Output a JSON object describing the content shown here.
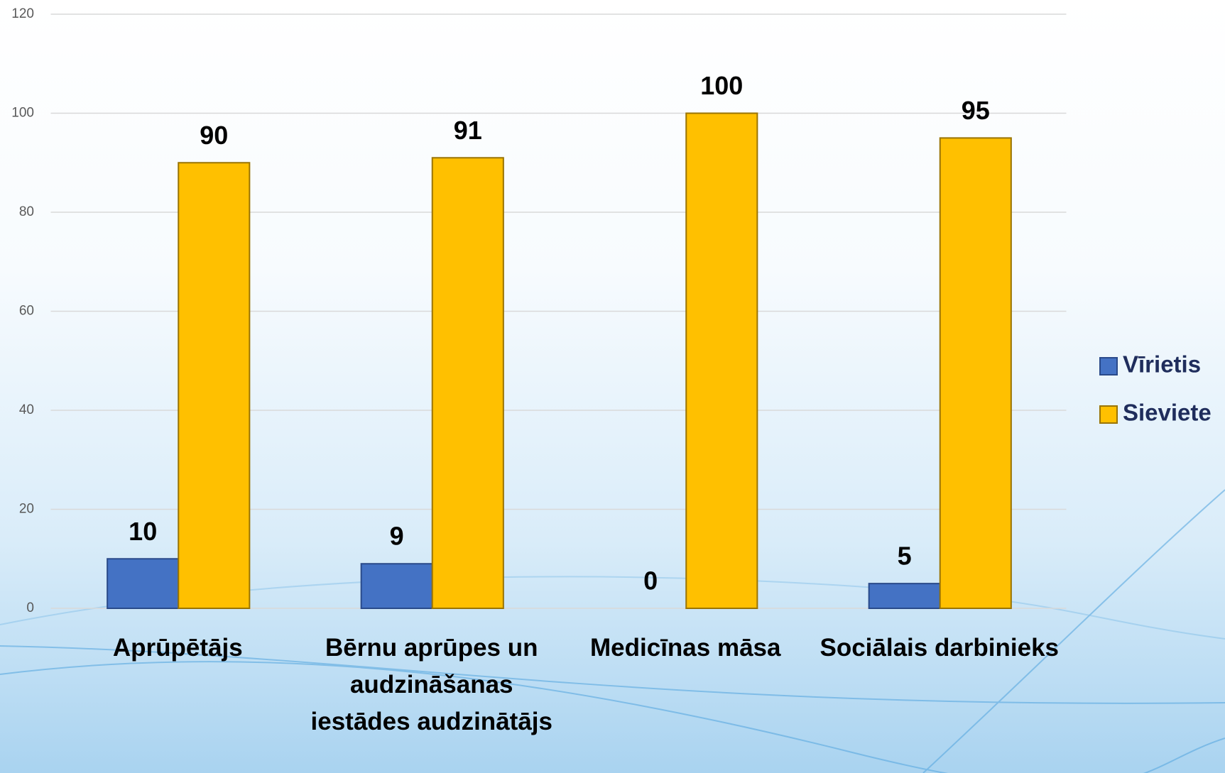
{
  "chart_data": {
    "type": "bar",
    "categories": [
      "Aprūpētājs",
      "Bērnu aprūpes un audzināšanas iestādes audzinātājs",
      "Medicīnas māsa",
      "Sociālais darbinieks"
    ],
    "series": [
      {
        "name": "Vīrietis",
        "color": "#4472c4",
        "values": [
          10,
          9,
          0,
          5
        ]
      },
      {
        "name": "Sieviete",
        "color": "#ffc000",
        "values": [
          90,
          91,
          100,
          95
        ]
      }
    ],
    "ylim": [
      0,
      120
    ],
    "yticks": [
      0,
      20,
      40,
      60,
      80,
      100,
      120
    ],
    "grid": true,
    "legend": "right"
  }
}
